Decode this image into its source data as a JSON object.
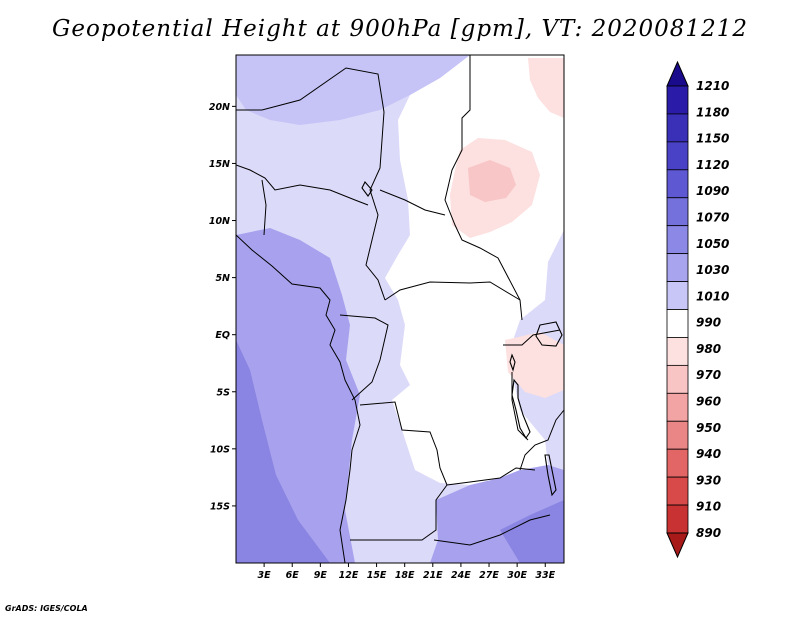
{
  "title": "Geopotential Height at 900hPa [gpm], VT: 2020081212",
  "credit": "GrADS: IGES/COLA",
  "map": {
    "lat_labels": [
      "20N",
      "15N",
      "10N",
      "5N",
      "EQ",
      "5S",
      "10S",
      "15S"
    ],
    "lat_values": [
      20,
      15,
      10,
      5,
      0,
      -5,
      -10,
      -15
    ],
    "lon_labels": [
      "3E",
      "6E",
      "9E",
      "12E",
      "15E",
      "18E",
      "21E",
      "24E",
      "27E",
      "30E",
      "33E"
    ],
    "lon_values": [
      3,
      6,
      9,
      12,
      15,
      18,
      21,
      24,
      27,
      30,
      33
    ],
    "lon_range": [
      0,
      35
    ],
    "lat_range": [
      -20,
      24.5
    ]
  },
  "colorbar": {
    "levels": [
      "1210",
      "1180",
      "1150",
      "1120",
      "1090",
      "1070",
      "1050",
      "1030",
      "1010",
      "990",
      "980",
      "970",
      "960",
      "950",
      "940",
      "930",
      "910",
      "890"
    ],
    "colors": [
      "#1a0a8c",
      "#2a1ca8",
      "#3a30b8",
      "#4a42c6",
      "#5e58d2",
      "#7470dc",
      "#8c88e6",
      "#a8a4ee",
      "#c8c6f6",
      "#ffffff",
      "#fde0e0",
      "#f8c4c4",
      "#f2a4a4",
      "#ea8686",
      "#e26666",
      "#d84a4a",
      "#c83232",
      "#a81a1a"
    ]
  },
  "field_colors": {
    "deep": "#8a84e2",
    "mid": "#a8a2ee",
    "light": "#c6c4f6",
    "pale": "#dcdaf9",
    "white": "#ffffff",
    "pink": "#fde0e0",
    "rose": "#f8c6c6"
  }
}
